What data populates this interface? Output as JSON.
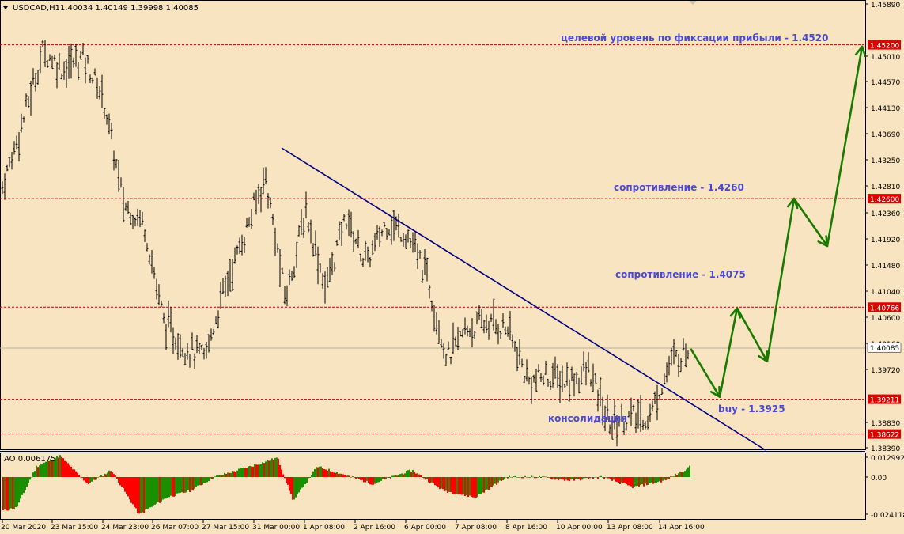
{
  "header": {
    "dropdown_icon": "triangle-down-icon",
    "symbol": "USDCAD,H1",
    "ohlc": "1.40034 1.40149 1.39998 1.40085"
  },
  "colors": {
    "background": "#f9e4c1",
    "candles": "#000000",
    "trendline": "#000080",
    "level_lines": "#c00000",
    "level_tag": "#e00000",
    "price_tag": "#ffffff",
    "annotation_text": "#4a4ad0",
    "forecast_arrows": "#1a7a00",
    "ao_up": "#1a8f00",
    "ao_down": "#ff0000"
  },
  "annotations": {
    "target": "целевой уровень по фиксации прибыли - 1.4520",
    "resistance_1": "сопротивление - 1.4260",
    "resistance_2": "сопротивление - 1.4075",
    "buy": "buy - 1.3925",
    "consolidation": "консолидация"
  },
  "price_axis": {
    "ticks": [
      "1.45890",
      "1.45010",
      "1.44570",
      "1.44130",
      "1.43690",
      "1.43250",
      "1.42810",
      "1.42360",
      "1.41920",
      "1.41480",
      "1.41040",
      "1.40600",
      "1.40160",
      "1.39720",
      "1.38830",
      "1.38390"
    ],
    "levels": [
      "1.45200",
      "1.42600",
      "1.40766",
      "1.39211",
      "1.38622"
    ],
    "current": "1.40085"
  },
  "ao_panel": {
    "label": "AO 0.006175",
    "ticks": [
      "0.012992",
      "0.00",
      "-0.024118"
    ]
  },
  "time_axis": [
    "20 Mar 2020",
    "23 Mar 15:00",
    "24 Mar 23:00",
    "26 Mar 07:00",
    "27 Mar 15:00",
    "31 Mar 00:00",
    "1 Apr 08:00",
    "2 Apr 16:00",
    "6 Apr 00:00",
    "7 Apr 08:00",
    "8 Apr 16:00",
    "10 Apr 00:00",
    "13 Apr 08:00",
    "14 Apr 16:00"
  ],
  "chart_data": {
    "type": "candlestick",
    "symbol": "USDCAD",
    "timeframe": "H1",
    "y_range": [
      1.383,
      1.4593
    ],
    "ohlc_last": {
      "open": 1.40034,
      "high": 1.40149,
      "low": 1.39998,
      "close": 1.40085
    },
    "horizontal_levels": [
      1.452,
      1.426,
      1.40766,
      1.39211,
      1.38622
    ],
    "trendline": {
      "from": {
        "time": "31 Mar 00:00",
        "price": 1.435
      },
      "to": {
        "time": "14 Apr 16:00+",
        "price": 1.384
      }
    },
    "price_path": [
      {
        "time": "20 Mar 2020",
        "price": 1.428
      },
      {
        "time": "21 Mar",
        "price": 1.439
      },
      {
        "time": "23 Mar 15:00",
        "price": 1.451
      },
      {
        "time": "23 Mar 22:00",
        "price": 1.448
      },
      {
        "time": "24 Mar 05:00",
        "price": 1.45
      },
      {
        "time": "24 Mar 23:00",
        "price": 1.443
      },
      {
        "time": "25 Mar",
        "price": 1.425
      },
      {
        "time": "26 Mar 07:00",
        "price": 1.422
      },
      {
        "time": "26 Mar 18:00",
        "price": 1.405
      },
      {
        "time": "27 Mar 06:00",
        "price": 1.401
      },
      {
        "time": "27 Mar 15:00",
        "price": 1.399
      },
      {
        "time": "30 Mar",
        "price": 1.411
      },
      {
        "time": "30 Mar 18:00",
        "price": 1.42
      },
      {
        "time": "31 Mar 00:00",
        "price": 1.43
      },
      {
        "time": "31 Mar 08:00",
        "price": 1.409
      },
      {
        "time": "1 Apr 08:00",
        "price": 1.424
      },
      {
        "time": "1 Apr 20:00",
        "price": 1.411
      },
      {
        "time": "2 Apr 06:00",
        "price": 1.423
      },
      {
        "time": "2 Apr 16:00",
        "price": 1.415
      },
      {
        "time": "3 Apr",
        "price": 1.422
      },
      {
        "time": "6 Apr 00:00",
        "price": 1.42
      },
      {
        "time": "6 Apr 12:00",
        "price": 1.413
      },
      {
        "time": "7 Apr 08:00",
        "price": 1.399
      },
      {
        "time": "7 Apr 20:00",
        "price": 1.404
      },
      {
        "time": "8 Apr 06:00",
        "price": 1.405
      },
      {
        "time": "8 Apr 16:00",
        "price": 1.404
      },
      {
        "time": "9 Apr",
        "price": 1.395
      },
      {
        "time": "10 Apr 00:00",
        "price": 1.396
      },
      {
        "time": "10 Apr 16:00",
        "price": 1.395
      },
      {
        "time": "13 Apr 00:00",
        "price": 1.397
      },
      {
        "time": "13 Apr 08:00",
        "price": 1.388
      },
      {
        "time": "13 Apr 20:00",
        "price": 1.389
      },
      {
        "time": "14 Apr 08:00",
        "price": 1.389
      },
      {
        "time": "14 Apr 16:00",
        "price": 1.398
      },
      {
        "time": "14 Apr 20:00",
        "price": 1.40085
      }
    ],
    "forecast_path": [
      {
        "step": 0,
        "price": 1.4005
      },
      {
        "step": 1,
        "price": 1.3925
      },
      {
        "step": 2,
        "price": 1.4075
      },
      {
        "step": 3,
        "price": 1.3985
      },
      {
        "step": 4,
        "price": 1.426
      },
      {
        "step": 5,
        "price": 1.418
      },
      {
        "step": 6,
        "price": 1.452
      }
    ]
  }
}
